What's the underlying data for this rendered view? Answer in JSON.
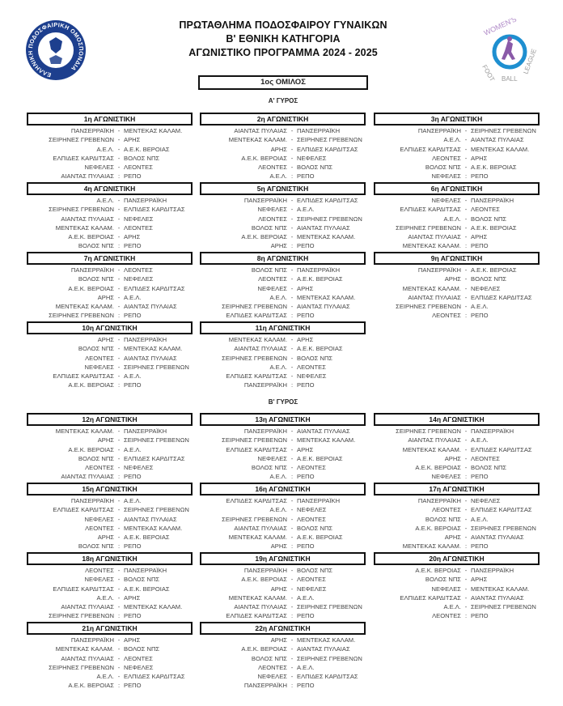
{
  "header": {
    "title_lines": [
      "ΠΡΩΤΑΘΛΗΜΑ ΠΟΔΟΣΦΑΙΡΟΥ ΓΥΝΑΙΚΩΝ",
      "Β' ΕΘΝΙΚΗ ΚΑΤΗΓΟΡΙΑ",
      "ΑΓΩΝΙΣΤΙΚΟ ΠΡΟΓΡΑΜΜΑ 2024 - 2025"
    ],
    "left_logo_text": "ΕΛΛΗΝΙΚΗ ΠΟΔΟΣΦΑΙΡΙΚΗ ΟΜΟΣΠΟΝΔΙΑ",
    "right_logo_text": "WOMEN'S FOOTBALL LEAGUE"
  },
  "group": "1ος ΟΜΙΛΟΣ",
  "colors": {
    "border": "#111111",
    "text": "#444444",
    "logo_blue": "#1d3f8e",
    "logo_purple": "#8a5aa8"
  },
  "rounds": [
    {
      "label": "Α' ΓΥΡΟΣ",
      "matchdays": [
        {
          "title": "1η ΑΓΩΝΙΣΤΙΚΗ",
          "lines": [
            [
              "ΠΑΝΣΕΡΡΑΪΚΗ",
              "-",
              "ΜΕΝΤΕΚΑΣ ΚΑΛΑΜ."
            ],
            [
              "ΣΕΙΡΗΝΕΣ ΓΡΕΒΕΝΩΝ",
              "-",
              "ΑΡΗΣ"
            ],
            [
              "Α.Ε.Λ.",
              "-",
              "Α.Ε.Κ. ΒΕΡΟΙΑΣ"
            ],
            [
              "ΕΛΠΙΔΕΣ ΚΑΡΔΙΤΣΑΣ",
              "-",
              "ΒΟΛΟΣ ΝΠΣ"
            ],
            [
              "ΝΕΦΕΛΕΣ",
              "-",
              "ΛΕΟΝΤΕΣ"
            ],
            [
              "ΑΙΑΝΤΑΣ ΠΥΛΑΙΑΣ",
              ":",
              "ΡΕΠΟ"
            ]
          ]
        },
        {
          "title": "2η ΑΓΩΝΙΣΤΙΚΗ",
          "lines": [
            [
              "ΑΙΑΝΤΑΣ ΠΥΛΑΙΑΣ",
              "-",
              "ΠΑΝΣΕΡΡΑΪΚΗ"
            ],
            [
              "ΜΕΝΤΕΚΑΣ ΚΑΛΑΜ.",
              "-",
              "ΣΕΙΡΗΝΕΣ ΓΡΕΒΕΝΩΝ"
            ],
            [
              "ΑΡΗΣ",
              "-",
              "ΕΛΠΙΔΕΣ ΚΑΡΔΙΤΣΑΣ"
            ],
            [
              "Α.Ε.Κ. ΒΕΡΟΙΑΣ",
              "-",
              "ΝΕΦΕΛΕΣ"
            ],
            [
              "ΛΕΟΝΤΕΣ",
              "-",
              "ΒΟΛΟΣ ΝΠΣ"
            ],
            [
              "Α.Ε.Λ.",
              ":",
              "ΡΕΠΟ"
            ]
          ]
        },
        {
          "title": "3η ΑΓΩΝΙΣΤΙΚΗ",
          "lines": [
            [
              "ΠΑΝΣΕΡΡΑΪΚΗ",
              "-",
              "ΣΕΙΡΗΝΕΣ ΓΡΕΒΕΝΩΝ"
            ],
            [
              "Α.Ε.Λ.",
              "-",
              "ΑΙΑΝΤΑΣ ΠΥΛΑΙΑΣ"
            ],
            [
              "ΕΛΠΙΔΕΣ ΚΑΡΔΙΤΣΑΣ",
              "-",
              "ΜΕΝΤΕΚΑΣ ΚΑΛΑΜ."
            ],
            [
              "ΛΕΟΝΤΕΣ",
              "-",
              "ΑΡΗΣ"
            ],
            [
              "ΒΟΛΟΣ ΝΠΣ",
              "-",
              "Α.Ε.Κ. ΒΕΡΟΙΑΣ"
            ],
            [
              "ΝΕΦΕΛΕΣ",
              ":",
              "ΡΕΠΟ"
            ]
          ]
        },
        {
          "title": "4η ΑΓΩΝΙΣΤΙΚΗ",
          "lines": [
            [
              "Α.Ε.Λ.",
              "-",
              "ΠΑΝΣΕΡΡΑΪΚΗ"
            ],
            [
              "ΣΕΙΡΗΝΕΣ ΓΡΕΒΕΝΩΝ",
              "-",
              "ΕΛΠΙΔΕΣ ΚΑΡΔΙΤΣΑΣ"
            ],
            [
              "ΑΙΑΝΤΑΣ ΠΥΛΑΙΑΣ",
              "-",
              "ΝΕΦΕΛΕΣ"
            ],
            [
              "ΜΕΝΤΕΚΑΣ ΚΑΛΑΜ.",
              "-",
              "ΛΕΟΝΤΕΣ"
            ],
            [
              "Α.Ε.Κ. ΒΕΡΟΙΑΣ",
              "-",
              "ΑΡΗΣ"
            ],
            [
              "ΒΟΛΟΣ ΝΠΣ",
              ":",
              "ΡΕΠΟ"
            ]
          ]
        },
        {
          "title": "5η ΑΓΩΝΙΣΤΙΚΗ",
          "lines": [
            [
              "ΠΑΝΣΕΡΡΑΪΚΗ",
              "-",
              "ΕΛΠΙΔΕΣ ΚΑΡΔΙΤΣΑΣ"
            ],
            [
              "ΝΕΦΕΛΕΣ",
              "-",
              "Α.Ε.Λ."
            ],
            [
              "ΛΕΟΝΤΕΣ",
              "-",
              "ΣΕΙΡΗΝΕΣ ΓΡΕΒΕΝΩΝ"
            ],
            [
              "ΒΟΛΟΣ ΝΠΣ",
              "-",
              "ΑΙΑΝΤΑΣ ΠΥΛΑΙΑΣ"
            ],
            [
              "Α.Ε.Κ. ΒΕΡΟΙΑΣ",
              "-",
              "ΜΕΝΤΕΚΑΣ ΚΑΛΑΜ."
            ],
            [
              "ΑΡΗΣ",
              ":",
              "ΡΕΠΟ"
            ]
          ]
        },
        {
          "title": "6η ΑΓΩΝΙΣΤΙΚΗ",
          "lines": [
            [
              "ΝΕΦΕΛΕΣ",
              "-",
              "ΠΑΝΣΕΡΡΑΪΚΗ"
            ],
            [
              "ΕΛΠΙΔΕΣ ΚΑΡΔΙΤΣΑΣ",
              "-",
              "ΛΕΟΝΤΕΣ"
            ],
            [
              "Α.Ε.Λ.",
              "-",
              "ΒΟΛΟΣ ΝΠΣ"
            ],
            [
              "ΣΕΙΡΗΝΕΣ ΓΡΕΒΕΝΩΝ",
              "-",
              "Α.Ε.Κ. ΒΕΡΟΙΑΣ"
            ],
            [
              "ΑΙΑΝΤΑΣ ΠΥΛΑΙΑΣ",
              "-",
              "ΑΡΗΣ"
            ],
            [
              "ΜΕΝΤΕΚΑΣ ΚΑΛΑΜ.",
              ":",
              "ΡΕΠΟ"
            ]
          ]
        },
        {
          "title": "7η ΑΓΩΝΙΣΤΙΚΗ",
          "lines": [
            [
              "ΠΑΝΣΕΡΡΑΪΚΗ",
              "-",
              "ΛΕΟΝΤΕΣ"
            ],
            [
              "ΒΟΛΟΣ ΝΠΣ",
              "-",
              "ΝΕΦΕΛΕΣ"
            ],
            [
              "Α.Ε.Κ. ΒΕΡΟΙΑΣ",
              "-",
              "ΕΛΠΙΔΕΣ ΚΑΡΔΙΤΣΑΣ"
            ],
            [
              "ΑΡΗΣ",
              "-",
              "Α.Ε.Λ."
            ],
            [
              "ΜΕΝΤΕΚΑΣ ΚΑΛΑΜ.",
              "-",
              "ΑΙΑΝΤΑΣ ΠΥΛΑΙΑΣ"
            ],
            [
              "ΣΕΙΡΗΝΕΣ ΓΡΕΒΕΝΩΝ",
              ":",
              "ΡΕΠΟ"
            ]
          ]
        },
        {
          "title": "8η ΑΓΩΝΙΣΤΙΚΗ",
          "lines": [
            [
              "ΒΟΛΟΣ ΝΠΣ",
              "-",
              "ΠΑΝΣΕΡΡΑΪΚΗ"
            ],
            [
              "ΛΕΟΝΤΕΣ",
              "-",
              "Α.Ε.Κ. ΒΕΡΟΙΑΣ"
            ],
            [
              "ΝΕΦΕΛΕΣ",
              "-",
              "ΑΡΗΣ"
            ],
            [
              "Α.Ε.Λ.",
              "-",
              "ΜΕΝΤΕΚΑΣ ΚΑΛΑΜ."
            ],
            [
              "ΣΕΙΡΗΝΕΣ ΓΡΕΒΕΝΩΝ",
              "-",
              "ΑΙΑΝΤΑΣ ΠΥΛΑΙΑΣ"
            ],
            [
              "ΕΛΠΙΔΕΣ ΚΑΡΔΙΤΣΑΣ",
              ":",
              "ΡΕΠΟ"
            ]
          ]
        },
        {
          "title": "9η ΑΓΩΝΙΣΤΙΚΗ",
          "lines": [
            [
              "ΠΑΝΣΕΡΡΑΪΚΗ",
              "-",
              "Α.Ε.Κ. ΒΕΡΟΙΑΣ"
            ],
            [
              "ΑΡΗΣ",
              "-",
              "ΒΟΛΟΣ ΝΠΣ"
            ],
            [
              "ΜΕΝΤΕΚΑΣ ΚΑΛΑΜ.",
              "-",
              "ΝΕΦΕΛΕΣ"
            ],
            [
              "ΑΙΑΝΤΑΣ ΠΥΛΑΙΑΣ",
              "-",
              "ΕΛΠΙΔΕΣ ΚΑΡΔΙΤΣΑΣ"
            ],
            [
              "ΣΕΙΡΗΝΕΣ ΓΡΕΒΕΝΩΝ",
              "-",
              "Α.Ε.Λ."
            ],
            [
              "ΛΕΟΝΤΕΣ",
              ":",
              "ΡΕΠΟ"
            ]
          ]
        },
        {
          "title": "10η ΑΓΩΝΙΣΤΙΚΗ",
          "lines": [
            [
              "ΑΡΗΣ",
              "-",
              "ΠΑΝΣΕΡΡΑΪΚΗ"
            ],
            [
              "ΒΟΛΟΣ ΝΠΣ",
              "-",
              "ΜΕΝΤΕΚΑΣ ΚΑΛΑΜ."
            ],
            [
              "ΛΕΟΝΤΕΣ",
              "-",
              "ΑΙΑΝΤΑΣ ΠΥΛΑΙΑΣ"
            ],
            [
              "ΝΕΦΕΛΕΣ",
              "-",
              "ΣΕΙΡΗΝΕΣ ΓΡΕΒΕΝΩΝ"
            ],
            [
              "ΕΛΠΙΔΕΣ ΚΑΡΔΙΤΣΑΣ",
              "-",
              "Α.Ε.Λ."
            ],
            [
              "Α.Ε.Κ. ΒΕΡΟΙΑΣ",
              ":",
              "ΡΕΠΟ"
            ]
          ]
        },
        {
          "title": "11η ΑΓΩΝΙΣΤΙΚΗ",
          "lines": [
            [
              "ΜΕΝΤΕΚΑΣ ΚΑΛΑΜ.",
              "-",
              "ΑΡΗΣ"
            ],
            [
              "ΑΙΑΝΤΑΣ ΠΥΛΑΙΑΣ",
              "-",
              "Α.Ε.Κ. ΒΕΡΟΙΑΣ"
            ],
            [
              "ΣΕΙΡΗΝΕΣ ΓΡΕΒΕΝΩΝ",
              "-",
              "ΒΟΛΟΣ ΝΠΣ"
            ],
            [
              "Α.Ε.Λ.",
              "-",
              "ΛΕΟΝΤΕΣ"
            ],
            [
              "ΕΛΠΙΔΕΣ ΚΑΡΔΙΤΣΑΣ",
              "-",
              "ΝΕΦΕΛΕΣ"
            ],
            [
              "ΠΑΝΣΕΡΡΑΪΚΗ",
              ":",
              "ΡΕΠΟ"
            ]
          ]
        }
      ]
    },
    {
      "label": "Β' ΓΥΡΟΣ",
      "matchdays": [
        {
          "title": "12η ΑΓΩΝΙΣΤΙΚΗ",
          "lines": [
            [
              "ΜΕΝΤΕΚΑΣ ΚΑΛΑΜ.",
              "-",
              "ΠΑΝΣΕΡΡΑΪΚΗ"
            ],
            [
              "ΑΡΗΣ",
              "-",
              "ΣΕΙΡΗΝΕΣ ΓΡΕΒΕΝΩΝ"
            ],
            [
              "Α.Ε.Κ. ΒΕΡΟΙΑΣ",
              "-",
              "Α.Ε.Λ."
            ],
            [
              "ΒΟΛΟΣ ΝΠΣ",
              "-",
              "ΕΛΠΙΔΕΣ ΚΑΡΔΙΤΣΑΣ"
            ],
            [
              "ΛΕΟΝΤΕΣ",
              "-",
              "ΝΕΦΕΛΕΣ"
            ],
            [
              "ΑΙΑΝΤΑΣ ΠΥΛΑΙΑΣ",
              ":",
              "ΡΕΠΟ"
            ]
          ]
        },
        {
          "title": "13η ΑΓΩΝΙΣΤΙΚΗ",
          "lines": [
            [
              "ΠΑΝΣΕΡΡΑΪΚΗ",
              "-",
              "ΑΙΑΝΤΑΣ ΠΥΛΑΙΑΣ"
            ],
            [
              "ΣΕΙΡΗΝΕΣ ΓΡΕΒΕΝΩΝ",
              "-",
              "ΜΕΝΤΕΚΑΣ ΚΑΛΑΜ."
            ],
            [
              "ΕΛΠΙΔΕΣ ΚΑΡΔΙΤΣΑΣ",
              "-",
              "ΑΡΗΣ"
            ],
            [
              "ΝΕΦΕΛΕΣ",
              "-",
              "Α.Ε.Κ. ΒΕΡΟΙΑΣ"
            ],
            [
              "ΒΟΛΟΣ ΝΠΣ",
              "-",
              "ΛΕΟΝΤΕΣ"
            ],
            [
              "Α.Ε.Λ.",
              ":",
              "ΡΕΠΟ"
            ]
          ]
        },
        {
          "title": "14η ΑΓΩΝΙΣΤΙΚΗ",
          "lines": [
            [
              "ΣΕΙΡΗΝΕΣ ΓΡΕΒΕΝΩΝ",
              "-",
              "ΠΑΝΣΕΡΡΑΪΚΗ"
            ],
            [
              "ΑΙΑΝΤΑΣ ΠΥΛΑΙΑΣ",
              "-",
              "Α.Ε.Λ."
            ],
            [
              "ΜΕΝΤΕΚΑΣ ΚΑΛΑΜ.",
              "-",
              "ΕΛΠΙΔΕΣ ΚΑΡΔΙΤΣΑΣ"
            ],
            [
              "ΑΡΗΣ",
              "-",
              "ΛΕΟΝΤΕΣ"
            ],
            [
              "Α.Ε.Κ. ΒΕΡΟΙΑΣ",
              "-",
              "ΒΟΛΟΣ ΝΠΣ"
            ],
            [
              "ΝΕΦΕΛΕΣ",
              ":",
              "ΡΕΠΟ"
            ]
          ]
        },
        {
          "title": "15η ΑΓΩΝΙΣΤΙΚΗ",
          "lines": [
            [
              "ΠΑΝΣΕΡΡΑΪΚΗ",
              "-",
              "Α.Ε.Λ."
            ],
            [
              "ΕΛΠΙΔΕΣ ΚΑΡΔΙΤΣΑΣ",
              "-",
              "ΣΕΙΡΗΝΕΣ ΓΡΕΒΕΝΩΝ"
            ],
            [
              "ΝΕΦΕΛΕΣ",
              "-",
              "ΑΙΑΝΤΑΣ ΠΥΛΑΙΑΣ"
            ],
            [
              "ΛΕΟΝΤΕΣ",
              "-",
              "ΜΕΝΤΕΚΑΣ ΚΑΛΑΜ."
            ],
            [
              "ΑΡΗΣ",
              "-",
              "Α.Ε.Κ. ΒΕΡΟΙΑΣ"
            ],
            [
              "ΒΟΛΟΣ ΝΠΣ",
              ":",
              "ΡΕΠΟ"
            ]
          ]
        },
        {
          "title": "16η ΑΓΩΝΙΣΤΙΚΗ",
          "lines": [
            [
              "ΕΛΠΙΔΕΣ ΚΑΡΔΙΤΣΑΣ",
              "-",
              "ΠΑΝΣΕΡΡΑΪΚΗ"
            ],
            [
              "Α.Ε.Λ.",
              "-",
              "ΝΕΦΕΛΕΣ"
            ],
            [
              "ΣΕΙΡΗΝΕΣ ΓΡΕΒΕΝΩΝ",
              "-",
              "ΛΕΟΝΤΕΣ"
            ],
            [
              "ΑΙΑΝΤΑΣ ΠΥΛΑΙΑΣ",
              "-",
              "ΒΟΛΟΣ ΝΠΣ"
            ],
            [
              "ΜΕΝΤΕΚΑΣ ΚΑΛΑΜ.",
              "-",
              "Α.Ε.Κ. ΒΕΡΟΙΑΣ"
            ],
            [
              "ΑΡΗΣ",
              ":",
              "ΡΕΠΟ"
            ]
          ]
        },
        {
          "title": "17η ΑΓΩΝΙΣΤΙΚΗ",
          "lines": [
            [
              "ΠΑΝΣΕΡΡΑΪΚΗ",
              "-",
              "ΝΕΦΕΛΕΣ"
            ],
            [
              "ΛΕΟΝΤΕΣ",
              "-",
              "ΕΛΠΙΔΕΣ ΚΑΡΔΙΤΣΑΣ"
            ],
            [
              "ΒΟΛΟΣ ΝΠΣ",
              "-",
              "Α.Ε.Λ."
            ],
            [
              "Α.Ε.Κ. ΒΕΡΟΙΑΣ",
              "-",
              "ΣΕΙΡΗΝΕΣ ΓΡΕΒΕΝΩΝ"
            ],
            [
              "ΑΡΗΣ",
              "-",
              "ΑΙΑΝΤΑΣ ΠΥΛΑΙΑΣ"
            ],
            [
              "ΜΕΝΤΕΚΑΣ ΚΑΛΑΜ.",
              ":",
              "ΡΕΠΟ"
            ]
          ]
        },
        {
          "title": "18η ΑΓΩΝΙΣΤΙΚΗ",
          "lines": [
            [
              "ΛΕΟΝΤΕΣ",
              "-",
              "ΠΑΝΣΕΡΡΑΪΚΗ"
            ],
            [
              "ΝΕΦΕΛΕΣ",
              "-",
              "ΒΟΛΟΣ ΝΠΣ"
            ],
            [
              "ΕΛΠΙΔΕΣ ΚΑΡΔΙΤΣΑΣ",
              "-",
              "Α.Ε.Κ. ΒΕΡΟΙΑΣ"
            ],
            [
              "Α.Ε.Λ.",
              "-",
              "ΑΡΗΣ"
            ],
            [
              "ΑΙΑΝΤΑΣ ΠΥΛΑΙΑΣ",
              "-",
              "ΜΕΝΤΕΚΑΣ ΚΑΛΑΜ."
            ],
            [
              "ΣΕΙΡΗΝΕΣ ΓΡΕΒΕΝΩΝ",
              ":",
              "ΡΕΠΟ"
            ]
          ]
        },
        {
          "title": "19η ΑΓΩΝΙΣΤΙΚΗ",
          "lines": [
            [
              "ΠΑΝΣΕΡΡΑΪΚΗ",
              "-",
              "ΒΟΛΟΣ ΝΠΣ"
            ],
            [
              "Α.Ε.Κ. ΒΕΡΟΙΑΣ",
              "-",
              "ΛΕΟΝΤΕΣ"
            ],
            [
              "ΑΡΗΣ",
              "-",
              "ΝΕΦΕΛΕΣ"
            ],
            [
              "ΜΕΝΤΕΚΑΣ ΚΑΛΑΜ.",
              "-",
              "Α.Ε.Λ."
            ],
            [
              "ΑΙΑΝΤΑΣ ΠΥΛΑΙΑΣ",
              "-",
              "ΣΕΙΡΗΝΕΣ ΓΡΕΒΕΝΩΝ"
            ],
            [
              "ΕΛΠΙΔΕΣ ΚΑΡΔΙΤΣΑΣ",
              ":",
              "ΡΕΠΟ"
            ]
          ]
        },
        {
          "title": "20η ΑΓΩΝΙΣΤΙΚΗ",
          "lines": [
            [
              "Α.Ε.Κ. ΒΕΡΟΙΑΣ",
              "-",
              "ΠΑΝΣΕΡΡΑΪΚΗ"
            ],
            [
              "ΒΟΛΟΣ ΝΠΣ",
              "-",
              "ΑΡΗΣ"
            ],
            [
              "ΝΕΦΕΛΕΣ",
              "-",
              "ΜΕΝΤΕΚΑΣ ΚΑΛΑΜ."
            ],
            [
              "ΕΛΠΙΔΕΣ ΚΑΡΔΙΤΣΑΣ",
              "-",
              "ΑΙΑΝΤΑΣ ΠΥΛΑΙΑΣ"
            ],
            [
              "Α.Ε.Λ.",
              "-",
              "ΣΕΙΡΗΝΕΣ ΓΡΕΒΕΝΩΝ"
            ],
            [
              "ΛΕΟΝΤΕΣ",
              ":",
              "ΡΕΠΟ"
            ]
          ]
        },
        {
          "title": "21η ΑΓΩΝΙΣΤΙΚΗ",
          "lines": [
            [
              "ΠΑΝΣΕΡΡΑΪΚΗ",
              "-",
              "ΑΡΗΣ"
            ],
            [
              "ΜΕΝΤΕΚΑΣ ΚΑΛΑΜ.",
              "-",
              "ΒΟΛΟΣ ΝΠΣ"
            ],
            [
              "ΑΙΑΝΤΑΣ ΠΥΛΑΙΑΣ",
              "-",
              "ΛΕΟΝΤΕΣ"
            ],
            [
              "ΣΕΙΡΗΝΕΣ ΓΡΕΒΕΝΩΝ",
              "-",
              "ΝΕΦΕΛΕΣ"
            ],
            [
              "Α.Ε.Λ.",
              "-",
              "ΕΛΠΙΔΕΣ ΚΑΡΔΙΤΣΑΣ"
            ],
            [
              "Α.Ε.Κ. ΒΕΡΟΙΑΣ",
              ":",
              "ΡΕΠΟ"
            ]
          ]
        },
        {
          "title": "22η ΑΓΩΝΙΣΤΙΚΗ",
          "lines": [
            [
              "ΑΡΗΣ",
              "-",
              "ΜΕΝΤΕΚΑΣ ΚΑΛΑΜ."
            ],
            [
              "Α.Ε.Κ. ΒΕΡΟΙΑΣ",
              "-",
              "ΑΙΑΝΤΑΣ ΠΥΛΑΙΑΣ"
            ],
            [
              "ΒΟΛΟΣ ΝΠΣ",
              "-",
              "ΣΕΙΡΗΝΕΣ ΓΡΕΒΕΝΩΝ"
            ],
            [
              "ΛΕΟΝΤΕΣ",
              "-",
              "Α.Ε.Λ."
            ],
            [
              "ΝΕΦΕΛΕΣ",
              "-",
              "ΕΛΠΙΔΕΣ ΚΑΡΔΙΤΣΑΣ"
            ],
            [
              "ΠΑΝΣΕΡΡΑΪΚΗ",
              ":",
              "ΡΕΠΟ"
            ]
          ]
        }
      ]
    }
  ]
}
